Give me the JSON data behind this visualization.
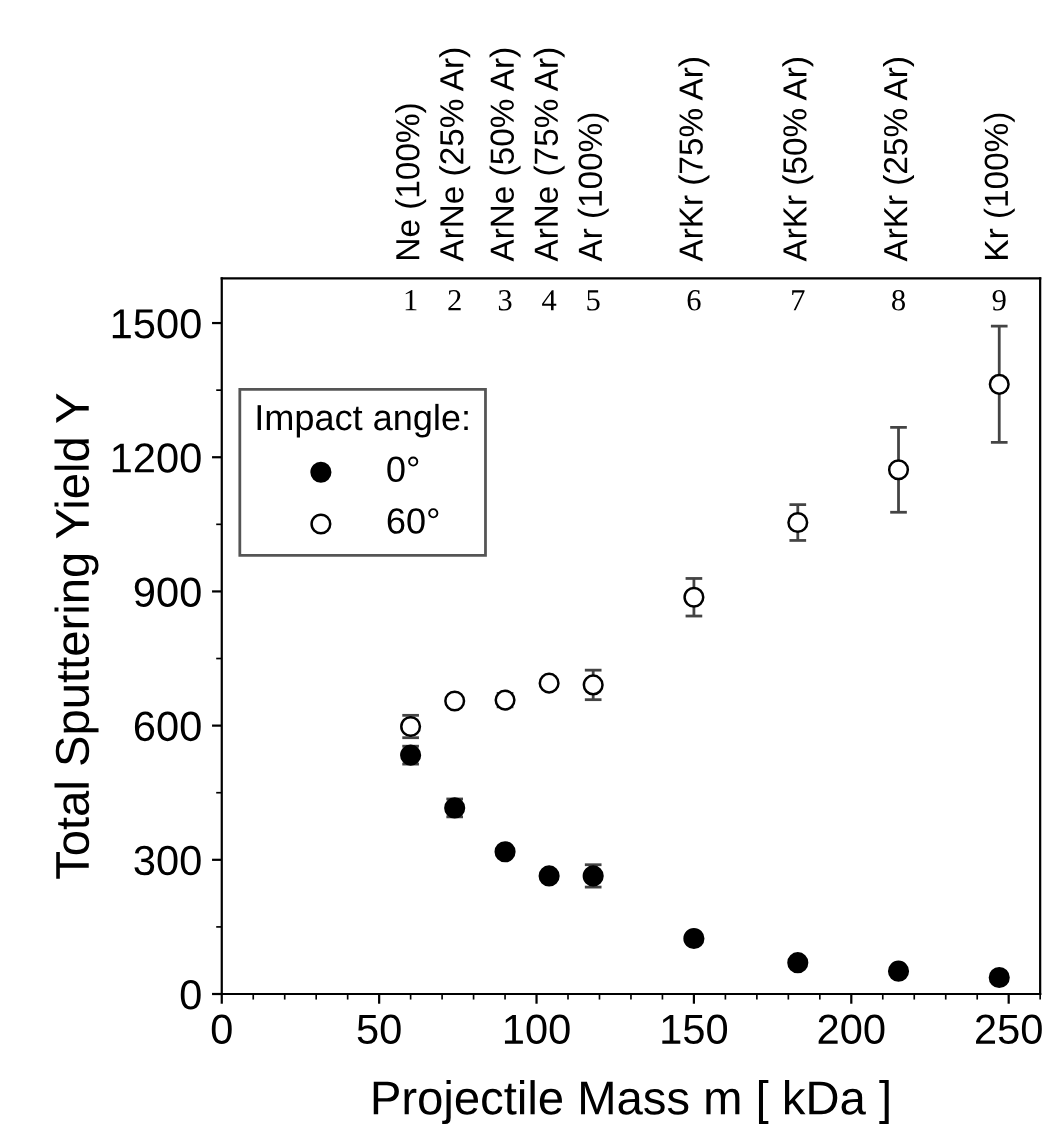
{
  "chart_data": {
    "type": "scatter",
    "xlabel": "Projectile Mass m [ kDa ]",
    "ylabel": "Total Sputtering Yield Y",
    "legend_title": "Impact angle:",
    "x": [
      60,
      74,
      90,
      104,
      118,
      150,
      183,
      215,
      247
    ],
    "series": [
      {
        "name": "0°",
        "color": "#000000",
        "values": [
          534,
          416,
          318,
          264,
          264,
          124,
          70,
          51,
          37
        ],
        "errors": [
          20,
          20,
          null,
          null,
          25,
          null,
          null,
          null,
          null
        ]
      },
      {
        "name": "60°",
        "color": "#ffffff",
        "values": [
          598,
          655,
          657,
          695,
          691,
          887,
          1054,
          1172,
          1363
        ],
        "errors": [
          25,
          10,
          15,
          8,
          33,
          42,
          40,
          95,
          130
        ]
      }
    ],
    "xlim": [
      0,
      260
    ],
    "xticks": [
      0,
      50,
      100,
      150,
      200,
      250
    ],
    "ylim": [
      0,
      1600
    ],
    "yticks": [
      0,
      300,
      600,
      900,
      1200,
      1500
    ],
    "annotations": [
      "Ne (100%)",
      "ArNe (25% Ar)",
      "ArNe (50% Ar)",
      "ArNe (75% Ar)",
      "Ar (100%)",
      "ArKr (75% Ar)",
      "ArKr (50% Ar)",
      "ArKr (25% Ar)",
      "Kr (100%)",
      "1",
      "2",
      "3",
      "4",
      "5",
      "6",
      "7",
      "8",
      "9"
    ],
    "marker": "circle",
    "legend": "top left",
    "grid": false
  }
}
